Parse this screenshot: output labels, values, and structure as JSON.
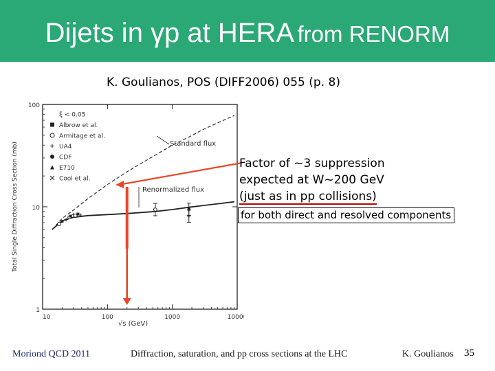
{
  "slide": {
    "title_main": "Dijets in γp at HERA",
    "title_sub": "from RENORM",
    "reference": "K. Goulianos, POS (DIFF2006) 055 (p. 8)",
    "note_lines": [
      "Factor of ~3 suppression",
      "expected at W~200 GeV",
      "(just as in pp collisions)"
    ],
    "boxed_note": "for both direct and resolved components",
    "footer_left": "Moriond QCD 2011",
    "footer_mid": "Diffraction, saturation, and pp cross sections at the LHC",
    "footer_right": "K. Goulianos",
    "page_number": "35",
    "colors": {
      "title_bar": "#2aa876",
      "arrow": "#e8462a",
      "note_underline": "#c00000"
    }
  },
  "chart_data": {
    "type": "line",
    "ylabel": "Total Single Diffraction Cross Section (mb)",
    "xlabel": "√s (GeV)",
    "x_scale": "log",
    "y_scale": "log",
    "xlim": [
      10,
      10000
    ],
    "ylim": [
      1,
      100
    ],
    "x_ticks": [
      "10",
      "100",
      "1000",
      "10000"
    ],
    "y_ticks": [
      "1",
      "10",
      "100"
    ],
    "legend": [
      "ξ < 0.05",
      "Albrow et al.",
      "Armitage et al.",
      "UA4",
      "CDF",
      "E710",
      "Cool et al."
    ],
    "annotations": [
      "Standard flux",
      "Renormalized flux"
    ],
    "series": [
      {
        "name": "Standard flux",
        "x": [
          14,
          20,
          30,
          50,
          100,
          200,
          546,
          1000,
          1800,
          3000,
          5000,
          9000
        ],
        "y": [
          6.0,
          7.7,
          9.3,
          12.0,
          16.5,
          22.0,
          32.0,
          40.0,
          48.0,
          57.0,
          66.0,
          78.0
        ]
      },
      {
        "name": "Renormalized flux",
        "x": [
          14,
          20,
          30,
          50,
          100,
          200,
          546,
          1000,
          1800,
          3000,
          5000,
          9000
        ],
        "y": [
          6.0,
          7.3,
          7.9,
          8.2,
          8.4,
          8.6,
          9.0,
          9.4,
          9.9,
          10.3,
          10.7,
          11.2
        ]
      }
    ],
    "points": [
      {
        "x": 18,
        "y": 6.8
      },
      {
        "x": 20,
        "y": 7.2
      },
      {
        "x": 23,
        "y": 7.5
      },
      {
        "x": 26,
        "y": 7.9
      },
      {
        "x": 27,
        "y": 8.1
      },
      {
        "x": 30,
        "y": 8.4
      },
      {
        "x": 32,
        "y": 8.2
      },
      {
        "x": 35,
        "y": 8.5
      },
      {
        "x": 38,
        "y": 8.3
      },
      {
        "x": 546,
        "y": 9.4
      },
      {
        "x": 1800,
        "y": 9.46
      },
      {
        "x": 1800,
        "y": 8.1
      }
    ]
  }
}
